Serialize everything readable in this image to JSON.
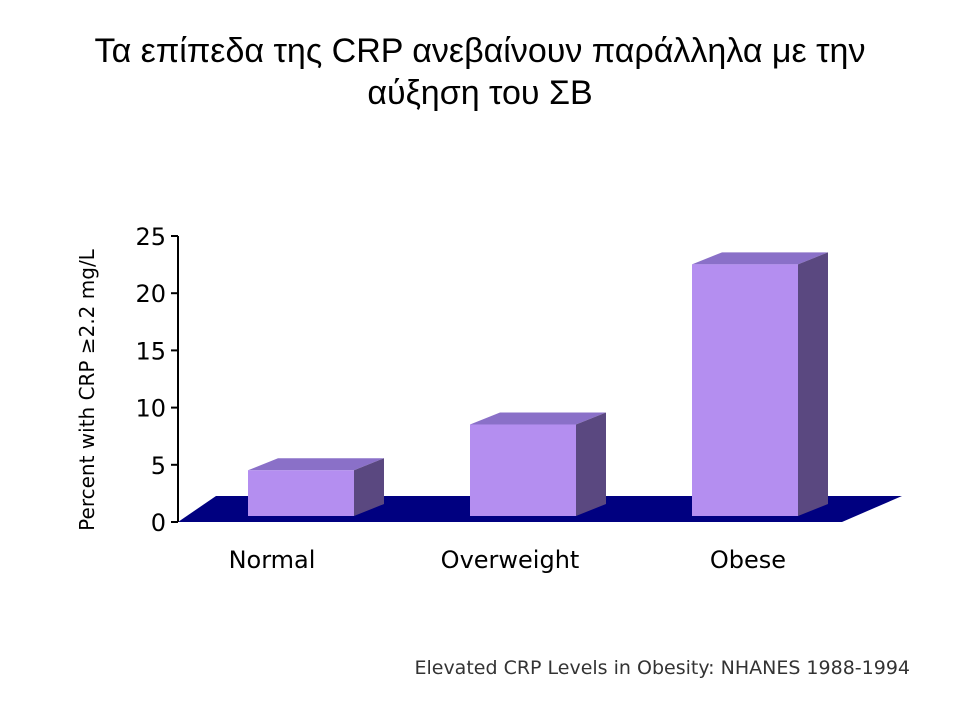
{
  "page": {
    "title_line1": "Τα επίπεδα της CRP ανεβαίνουν παράλληλα με την",
    "title_line2": "αύξηση του ΣΒ",
    "source": "Elevated CRP Levels in Obesity: NHANES 1988-1994"
  },
  "chart_data": {
    "type": "bar",
    "title": "",
    "ylabel": "Percent with CRP ≥2.2 mg/L",
    "xlabel": "",
    "categories": [
      "Normal",
      "Overweight",
      "Obese"
    ],
    "values": [
      4,
      8,
      22
    ],
    "ylim": [
      0,
      25
    ],
    "yticks": [
      0,
      5,
      10,
      15,
      20,
      25
    ],
    "style": "3d",
    "colors": {
      "bar_front": "#b48ef0",
      "bar_top": "#8a70c8",
      "bar_side": "#5a4880",
      "floor": "#000080"
    }
  }
}
